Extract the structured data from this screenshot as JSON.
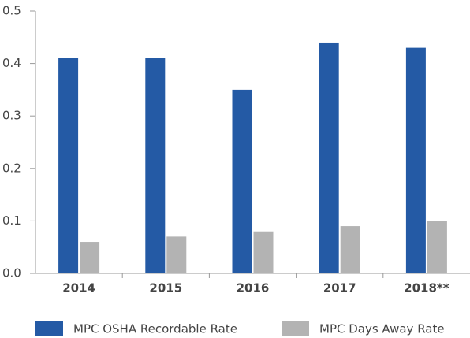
{
  "chart_data": {
    "type": "bar",
    "categories": [
      "2014",
      "2015",
      "2016",
      "2017",
      "2018**"
    ],
    "series": [
      {
        "name": "MPC OSHA Recordable Rate",
        "color": "#245aa5",
        "values": [
          0.41,
          0.41,
          0.35,
          0.44,
          0.43
        ]
      },
      {
        "name": "MPC Days Away Rate",
        "color": "#b3b3b3",
        "values": [
          0.06,
          0.07,
          0.08,
          0.09,
          0.1
        ]
      }
    ],
    "ylim": [
      0,
      0.5
    ],
    "yticks": [
      {
        "value": 0,
        "label": "0.0"
      },
      0.1,
      0.2,
      0.3,
      0.4,
      0.5
    ],
    "grid": false
  }
}
